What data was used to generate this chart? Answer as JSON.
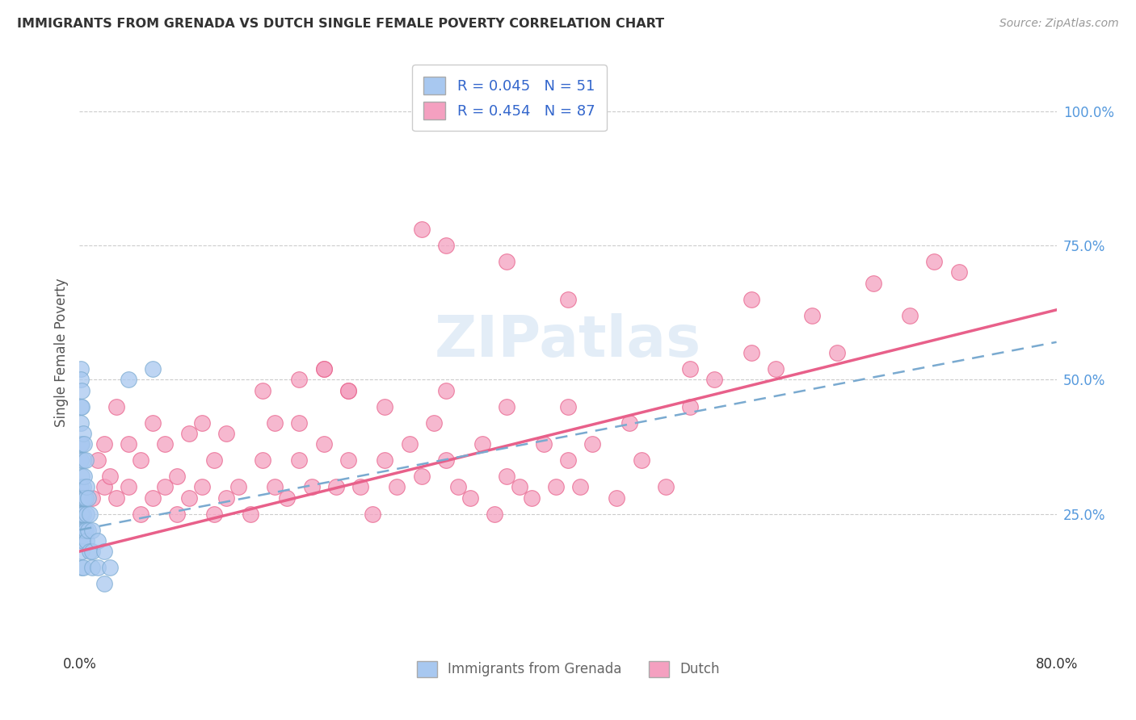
{
  "title": "IMMIGRANTS FROM GRENADA VS DUTCH SINGLE FEMALE POVERTY CORRELATION CHART",
  "source": "Source: ZipAtlas.com",
  "ylabel": "Single Female Poverty",
  "legend_label1": "Immigrants from Grenada",
  "legend_label2": "Dutch",
  "R1": "0.045",
  "N1": "51",
  "R2": "0.454",
  "N2": "87",
  "color1": "#A8C8F0",
  "color2": "#F4A0C0",
  "line1_color": "#7AAAD0",
  "line2_color": "#E8608A",
  "background_color": "#FFFFFF",
  "watermark": "ZIPatlas",
  "xlim": [
    0.0,
    0.8
  ],
  "ylim": [
    0.0,
    1.1
  ],
  "grenada_x": [
    0.001,
    0.001,
    0.001,
    0.001,
    0.001,
    0.001,
    0.001,
    0.001,
    0.001,
    0.001,
    0.002,
    0.002,
    0.002,
    0.002,
    0.002,
    0.002,
    0.002,
    0.002,
    0.002,
    0.002,
    0.003,
    0.003,
    0.003,
    0.003,
    0.003,
    0.003,
    0.003,
    0.004,
    0.004,
    0.004,
    0.004,
    0.005,
    0.005,
    0.005,
    0.006,
    0.006,
    0.006,
    0.007,
    0.007,
    0.008,
    0.008,
    0.01,
    0.01,
    0.01,
    0.015,
    0.015,
    0.02,
    0.02,
    0.025,
    0.04,
    0.06
  ],
  "grenada_y": [
    0.52,
    0.5,
    0.45,
    0.42,
    0.38,
    0.35,
    0.3,
    0.28,
    0.25,
    0.22,
    0.48,
    0.45,
    0.38,
    0.32,
    0.28,
    0.25,
    0.22,
    0.2,
    0.18,
    0.15,
    0.4,
    0.35,
    0.3,
    0.28,
    0.25,
    0.2,
    0.15,
    0.38,
    0.32,
    0.28,
    0.22,
    0.35,
    0.28,
    0.22,
    0.3,
    0.25,
    0.2,
    0.28,
    0.22,
    0.25,
    0.18,
    0.22,
    0.18,
    0.15,
    0.2,
    0.15,
    0.18,
    0.12,
    0.15,
    0.5,
    0.52
  ],
  "dutch_x": [
    0.01,
    0.015,
    0.02,
    0.02,
    0.025,
    0.03,
    0.03,
    0.04,
    0.04,
    0.05,
    0.05,
    0.06,
    0.06,
    0.07,
    0.07,
    0.08,
    0.08,
    0.09,
    0.09,
    0.1,
    0.1,
    0.11,
    0.11,
    0.12,
    0.12,
    0.13,
    0.14,
    0.15,
    0.15,
    0.16,
    0.16,
    0.17,
    0.18,
    0.18,
    0.19,
    0.2,
    0.2,
    0.21,
    0.22,
    0.22,
    0.23,
    0.24,
    0.25,
    0.25,
    0.26,
    0.27,
    0.28,
    0.29,
    0.3,
    0.3,
    0.31,
    0.32,
    0.33,
    0.34,
    0.35,
    0.35,
    0.36,
    0.37,
    0.38,
    0.39,
    0.4,
    0.4,
    0.41,
    0.42,
    0.44,
    0.45,
    0.46,
    0.48,
    0.5,
    0.5,
    0.52,
    0.55,
    0.55,
    0.57,
    0.6,
    0.62,
    0.65,
    0.68,
    0.7,
    0.72,
    0.3,
    0.28,
    0.35,
    0.4,
    0.2,
    0.22,
    0.18
  ],
  "dutch_y": [
    0.28,
    0.35,
    0.3,
    0.38,
    0.32,
    0.28,
    0.45,
    0.3,
    0.38,
    0.25,
    0.35,
    0.28,
    0.42,
    0.3,
    0.38,
    0.25,
    0.32,
    0.28,
    0.4,
    0.3,
    0.42,
    0.25,
    0.35,
    0.28,
    0.4,
    0.3,
    0.25,
    0.35,
    0.48,
    0.3,
    0.42,
    0.28,
    0.35,
    0.5,
    0.3,
    0.38,
    0.52,
    0.3,
    0.35,
    0.48,
    0.3,
    0.25,
    0.45,
    0.35,
    0.3,
    0.38,
    0.32,
    0.42,
    0.48,
    0.35,
    0.3,
    0.28,
    0.38,
    0.25,
    0.32,
    0.45,
    0.3,
    0.28,
    0.38,
    0.3,
    0.45,
    0.35,
    0.3,
    0.38,
    0.28,
    0.42,
    0.35,
    0.3,
    0.45,
    0.52,
    0.5,
    0.55,
    0.65,
    0.52,
    0.62,
    0.55,
    0.68,
    0.62,
    0.72,
    0.7,
    0.75,
    0.78,
    0.72,
    0.65,
    0.52,
    0.48,
    0.42
  ]
}
